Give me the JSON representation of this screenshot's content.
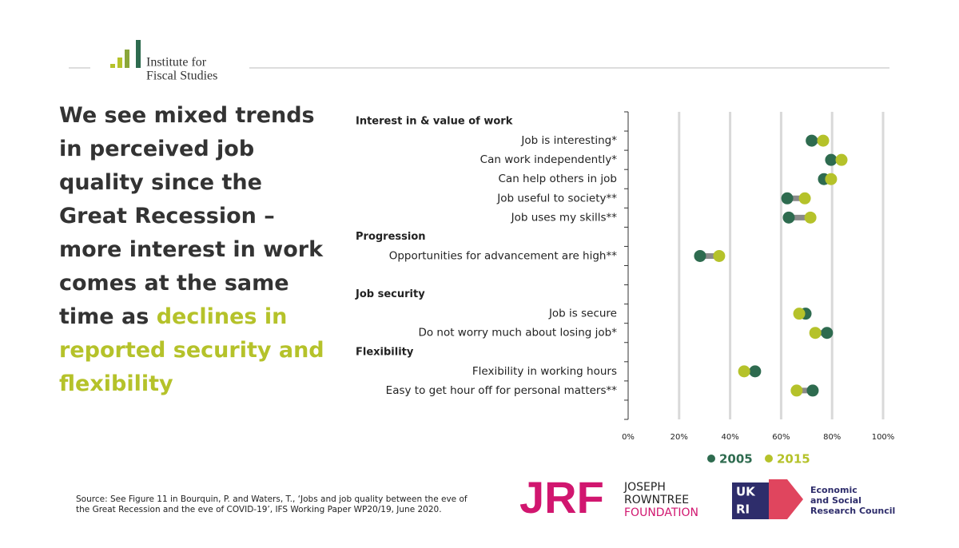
{
  "title": "We see mixed trends in perceived job quality since the Great Recession – more interest in work comes at the same time as",
  "title_highlight": "declines in reported security and flexibility",
  "source": "Source: See Figure 11 in Bourquin, P. and Waters, T., ‘Jobs and job quality between the eve of the Great Recession and the eve of COVID-19’, IFS Working Paper WP20/19, June 2020.",
  "logos": {
    "ifs": [
      "Institute for",
      "Fiscal Studies"
    ],
    "jrf": "JRF",
    "jrf_name": [
      "JOSEPH",
      "ROWNTREE",
      "FOUNDATION"
    ],
    "ukri": [
      "UK",
      "RI"
    ],
    "esrc": [
      "Economic",
      "and Social",
      "Research Council"
    ]
  },
  "chart_data": {
    "type": "dumbbell",
    "categories": [
      "Interest in & value of work",
      "Job is interesting*",
      "Can work independently*",
      "Can help others in job",
      "Job useful to society**",
      "Job uses my skills**",
      "Progression",
      "Opportunities for advancement are high**",
      null,
      "Job security",
      "Job is secure",
      "Do not worry much about losing job*",
      "Flexibility",
      "Flexibility in working hours",
      "Easy to get hour off for personal matters**",
      null
    ],
    "series": [
      {
        "name": "2005",
        "color": "#2e6b4f",
        "values": [
          null,
          72,
          79.6,
          76.8,
          62.4,
          63,
          null,
          28.2,
          null,
          null,
          69.6,
          78,
          null,
          49.8,
          72.4,
          null
        ]
      },
      {
        "name": "2015",
        "color": "#b5c22a",
        "values": [
          null,
          76.5,
          83.7,
          79.6,
          69.3,
          71.5,
          null,
          35.7,
          null,
          null,
          67.1,
          73.4,
          null,
          45.5,
          66.1,
          null
        ]
      }
    ],
    "connector_color": "#8a8a8a",
    "xlim": [
      0,
      100
    ],
    "xticks": [
      {
        "value": 0,
        "label": "0%"
      },
      {
        "value": 20,
        "label": "20%"
      },
      {
        "value": 40,
        "label": "40%"
      },
      {
        "value": 60,
        "label": "60%"
      },
      {
        "value": 80,
        "label": "80%"
      },
      {
        "value": 100,
        "label": "100%"
      }
    ],
    "grid": true
  }
}
